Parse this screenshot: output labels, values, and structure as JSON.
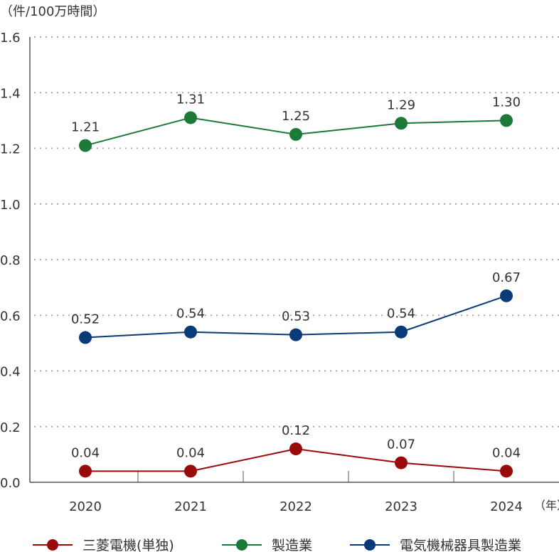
{
  "chart_data": {
    "type": "line",
    "ylabel": "（件/100万時間）",
    "xunit": "（年）",
    "categories": [
      "2020",
      "2021",
      "2022",
      "2023",
      "2024"
    ],
    "ylim": [
      0,
      1.6
    ],
    "yticks": [
      "0.0",
      "0.2",
      "0.4",
      "0.6",
      "0.8",
      "1.0",
      "1.2",
      "1.4",
      "1.6"
    ],
    "grid": "horizontal dotted",
    "legend_position": "bottom",
    "series": [
      {
        "name": "三菱電機(単独)",
        "color": "#9b0a0a",
        "values": [
          0.04,
          0.04,
          0.12,
          0.07,
          0.04
        ]
      },
      {
        "name": "製造業",
        "color": "#1b7a37",
        "values": [
          1.21,
          1.31,
          1.25,
          1.29,
          1.3
        ]
      },
      {
        "name": "電気機械器具製造業",
        "color": "#0a3a78",
        "values": [
          0.52,
          0.54,
          0.53,
          0.54,
          0.67
        ]
      }
    ]
  }
}
